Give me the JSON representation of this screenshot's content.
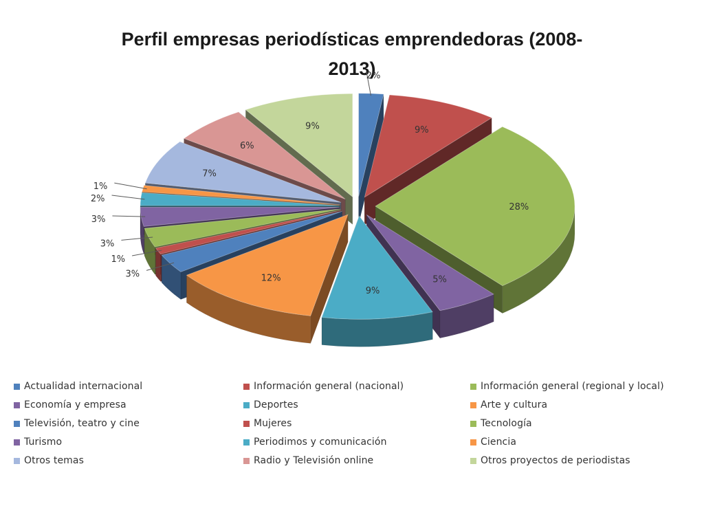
{
  "chart_data": {
    "type": "pie",
    "title_lines": [
      "Perfil empresas periodísticas emprendedoras (2008-",
      "2013)"
    ],
    "legend_position": "bottom",
    "unit": "%",
    "slices": [
      {
        "name": "Actualidad internacional",
        "value": 2,
        "label": "2%",
        "color": "#4f81bd"
      },
      {
        "name": "Información general (nacional)",
        "value": 9,
        "label": "9%",
        "color": "#c0504d"
      },
      {
        "name": "Información general (regional y local)",
        "value": 28,
        "label": "28%",
        "color": "#9bbb59"
      },
      {
        "name": "Economía y empresa",
        "value": 5,
        "label": "5%",
        "color": "#8064a2"
      },
      {
        "name": "Deportes",
        "value": 9,
        "label": "9%",
        "color": "#4bacc6"
      },
      {
        "name": "Arte y cultura",
        "value": 12,
        "label": "12%",
        "color": "#f79646"
      },
      {
        "name": "Televisión, teatro y cine",
        "value": 3,
        "label": "3%",
        "color": "#4f81bd"
      },
      {
        "name": "Mujeres",
        "value": 1,
        "label": "1%",
        "color": "#c0504d"
      },
      {
        "name": "Tecnología",
        "value": 3,
        "label": "3%",
        "color": "#9bbb59"
      },
      {
        "name": "Turismo",
        "value": 3,
        "label": "3%",
        "color": "#8064a2"
      },
      {
        "name": "Periodimos y comunicación",
        "value": 2,
        "label": "2%",
        "color": "#4bacc6"
      },
      {
        "name": "Ciencia",
        "value": 1,
        "label": "1%",
        "color": "#f79646"
      },
      {
        "name": "Otros temas",
        "value": 7,
        "label": "7%",
        "color": "#a5b8de"
      },
      {
        "name": "Radio y Televisión online",
        "value": 6,
        "label": "6%",
        "color": "#d99694"
      },
      {
        "name": "Otros proyectos de periodistas",
        "value": 9,
        "label": "9%",
        "color": "#c3d69b"
      }
    ]
  },
  "legend": {
    "rows": [
      [
        "Actualidad internacional",
        "Información general (nacional)",
        "Información general (regional y local)"
      ],
      [
        "Economía y empresa",
        "Deportes",
        "Arte y cultura"
      ],
      [
        "Televisión, teatro y cine",
        "Mujeres",
        "Tecnología"
      ],
      [
        "Turismo",
        "Periodimos y comunicación",
        "Ciencia"
      ],
      [
        "Otros temas",
        "Radio y Televisión online",
        "Otros proyectos de periodistas"
      ]
    ]
  }
}
